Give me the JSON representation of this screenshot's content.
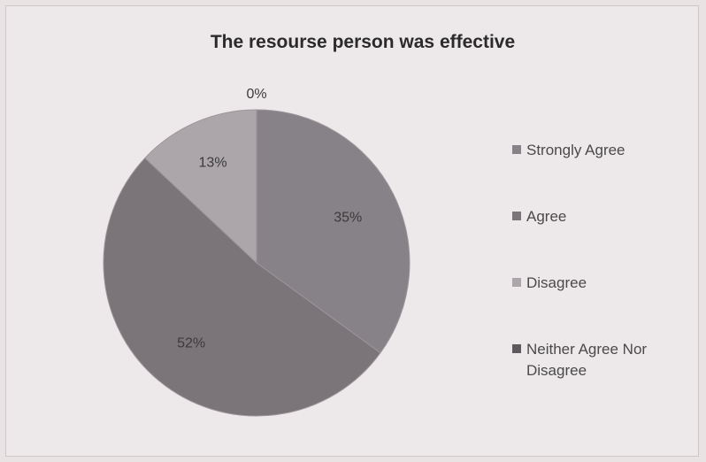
{
  "chart_data": {
    "type": "pie",
    "title": "The resourse person was effective",
    "categories": [
      "Strongly Agree",
      "Agree",
      "Disagree",
      "Neither Agree Nor Disagree"
    ],
    "values": [
      35,
      52,
      13,
      0
    ],
    "data_labels": [
      "35%",
      "52%",
      "13%",
      "0%"
    ],
    "colors": [
      "#878287",
      "#7b7479",
      "#aca6aa",
      "#5d5a5d"
    ],
    "legend_position": "right"
  }
}
